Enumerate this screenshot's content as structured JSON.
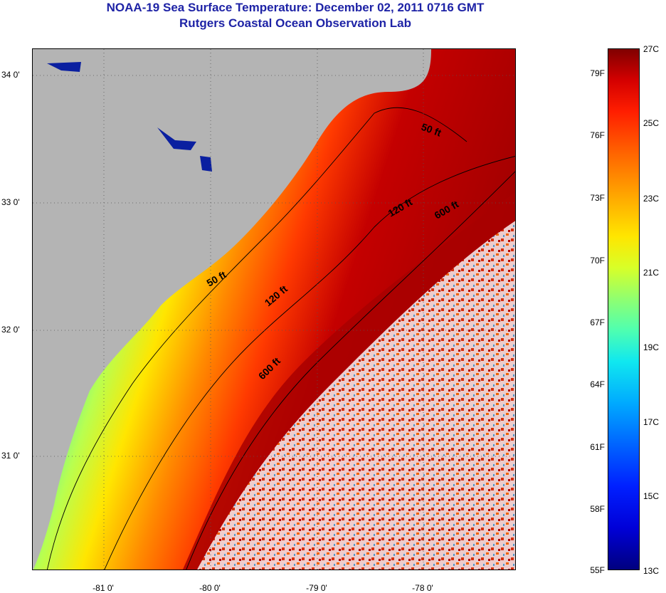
{
  "header": {
    "title": "NOAA-19 Sea Surface Temperature:  December 02, 2011 0716 GMT",
    "subtitle": "Rutgers Coastal Ocean Observation Lab"
  },
  "map": {
    "y_axis_labels": [
      "34 0'",
      "33 0'",
      "32 0'",
      "31 0'"
    ],
    "x_axis_labels": [
      "-81 0'",
      "-80 0'",
      "-79 0'",
      "-78 0'"
    ],
    "contour_labels": [
      "50 ft",
      "50 ft",
      "120 ft",
      "120 ft",
      "600 ft",
      "600 ft"
    ]
  },
  "colorbar": {
    "fahrenheit_labels": [
      "79F",
      "76F",
      "73F",
      "70F",
      "67F",
      "64F",
      "61F",
      "58F",
      "55F"
    ],
    "celsius_labels": [
      "27C",
      "25C",
      "23C",
      "21C",
      "19C",
      "17C",
      "15C",
      "13C"
    ]
  }
}
